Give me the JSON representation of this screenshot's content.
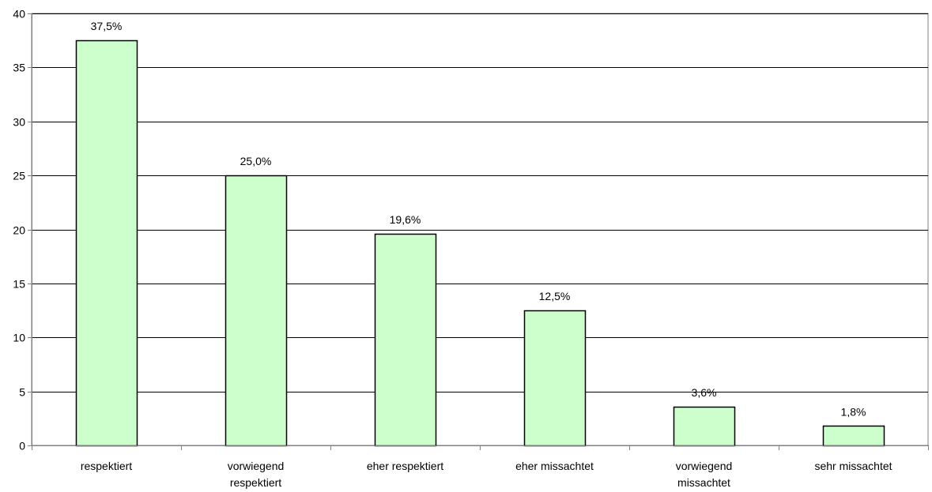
{
  "chart_data": {
    "type": "bar",
    "categories": [
      [
        "respektiert"
      ],
      [
        "vorwiegend",
        "respektiert"
      ],
      [
        "eher respektiert"
      ],
      [
        "eher missachtet"
      ],
      [
        "vorwiegend",
        "missachtet"
      ],
      [
        "sehr missachtet"
      ]
    ],
    "values": [
      37.5,
      25.0,
      19.6,
      12.5,
      3.6,
      1.8
    ],
    "data_labels": [
      "37,5%",
      "25,0%",
      "19,6%",
      "12,5%",
      "3,6%",
      "1,8%"
    ],
    "y_ticks": [
      0,
      5,
      10,
      15,
      20,
      25,
      30,
      35,
      40
    ],
    "ylim": [
      0,
      40
    ],
    "grid": true,
    "legend": "none",
    "colors": {
      "bar_fill": "#ccffcc",
      "bar_stroke": "#000000",
      "grid": "#000000",
      "axis": "#808080"
    }
  }
}
